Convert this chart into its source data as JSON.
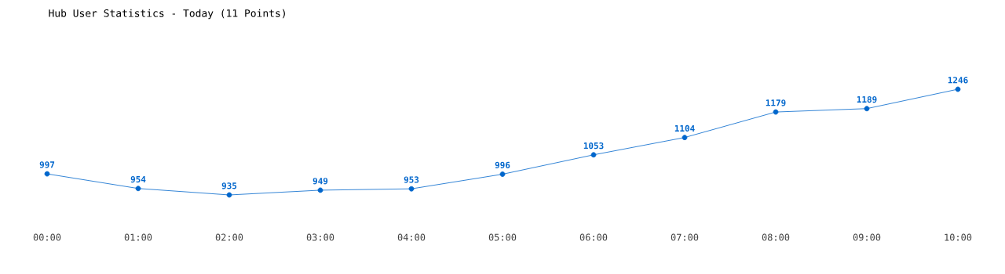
{
  "chart_data": {
    "type": "line",
    "title": "Hub User Statistics - Today (11 Points)",
    "categories": [
      "00:00",
      "01:00",
      "02:00",
      "03:00",
      "04:00",
      "05:00",
      "06:00",
      "07:00",
      "08:00",
      "09:00",
      "10:00"
    ],
    "series": [
      {
        "color": "#0066cc",
        "values": [
          997,
          954,
          935,
          949,
          953,
          996,
          1053,
          1104,
          1179,
          1189,
          1246
        ]
      }
    ],
    "data_labels": true,
    "marker": "circle",
    "line_style": "solid"
  }
}
